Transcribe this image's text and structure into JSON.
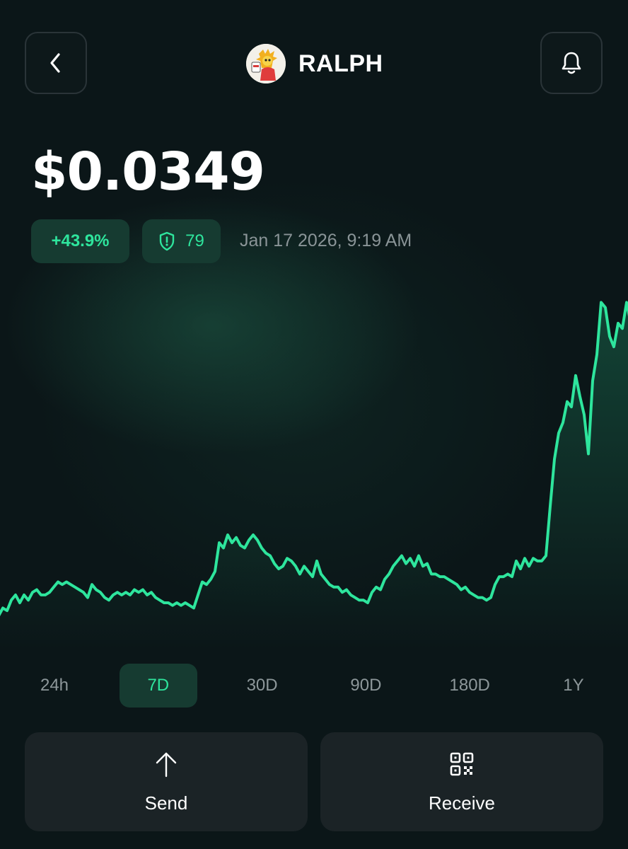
{
  "header": {
    "token_name": "RALPH",
    "back_icon": "chevron-left-icon",
    "bell_icon": "bell-icon"
  },
  "price": "$0.0349",
  "change": "+43.9%",
  "score": "79",
  "timestamp": "Jan 17 2026, 9:19 AM",
  "colors": {
    "accent": "#2ee59d",
    "pill_bg": "#163b31",
    "background": "#0b1618",
    "card": "#1b2326"
  },
  "chart_data": {
    "type": "line",
    "values": [
      0.0228,
      0.0231,
      0.023,
      0.0234,
      0.0236,
      0.0233,
      0.0236,
      0.0234,
      0.0237,
      0.0238,
      0.0236,
      0.0236,
      0.0237,
      0.0239,
      0.0241,
      0.024,
      0.0241,
      0.024,
      0.0239,
      0.0238,
      0.0237,
      0.0235,
      0.024,
      0.0238,
      0.0237,
      0.0235,
      0.0234,
      0.0236,
      0.0237,
      0.0236,
      0.0237,
      0.0236,
      0.0238,
      0.0237,
      0.0238,
      0.0236,
      0.0237,
      0.0235,
      0.0234,
      0.0233,
      0.0233,
      0.0232,
      0.0233,
      0.0232,
      0.0233,
      0.0232,
      0.0231,
      0.0236,
      0.0241,
      0.024,
      0.0242,
      0.0245,
      0.0256,
      0.0254,
      0.0259,
      0.0256,
      0.0258,
      0.0255,
      0.0254,
      0.0257,
      0.0259,
      0.0257,
      0.0254,
      0.0252,
      0.0251,
      0.0248,
      0.0246,
      0.0247,
      0.025,
      0.0249,
      0.0247,
      0.0244,
      0.0247,
      0.0245,
      0.0243,
      0.0249,
      0.0244,
      0.0242,
      0.024,
      0.0239,
      0.0239,
      0.0237,
      0.0238,
      0.0236,
      0.0235,
      0.0234,
      0.0234,
      0.0233,
      0.0237,
      0.0239,
      0.0238,
      0.0242,
      0.0244,
      0.0247,
      0.0249,
      0.0251,
      0.0248,
      0.025,
      0.0247,
      0.0251,
      0.0247,
      0.0248,
      0.0244,
      0.0244,
      0.0243,
      0.0243,
      0.0242,
      0.0241,
      0.024,
      0.0238,
      0.0239,
      0.0237,
      0.0236,
      0.0235,
      0.0235,
      0.0234,
      0.0235,
      0.024,
      0.0243,
      0.0243,
      0.0244,
      0.0243,
      0.0249,
      0.0246,
      0.025,
      0.0247,
      0.025,
      0.0249,
      0.0249,
      0.0251,
      0.027,
      0.0288,
      0.0298,
      0.0302,
      0.031,
      0.0308,
      0.032,
      0.0312,
      0.0305,
      0.029,
      0.0318,
      0.0328,
      0.0348,
      0.0346,
      0.0335,
      0.0331,
      0.034,
      0.0338,
      0.0348,
      0.034
    ],
    "title": "",
    "xlabel": "",
    "ylabel": "",
    "ylim": [
      0.022,
      0.035
    ],
    "grid": false,
    "color": "#2ee59d"
  },
  "ranges": {
    "active": "7D",
    "items": [
      "24h",
      "7D",
      "30D",
      "90D",
      "180D",
      "1Y"
    ]
  },
  "actions": {
    "send_label": "Send",
    "send_icon": "arrow-up-icon",
    "receive_label": "Receive",
    "receive_icon": "qr-code-icon"
  }
}
